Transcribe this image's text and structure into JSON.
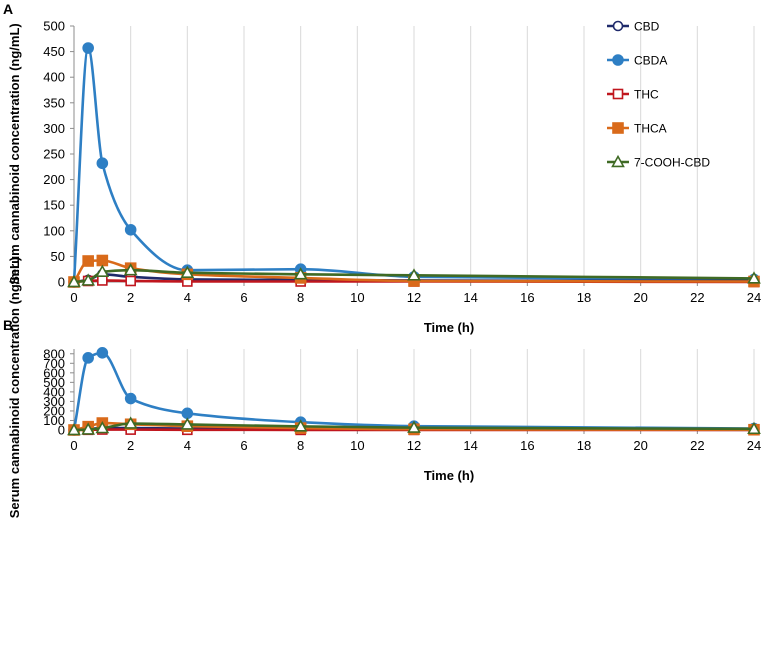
{
  "chart_data": [
    {
      "type": "line",
      "panel_label": "A",
      "xlabel": "Time (h)",
      "ylabel": "Serum cannabinoid concentration (ng/mL)",
      "xlim": [
        0,
        24
      ],
      "ylim": [
        0,
        500
      ],
      "xticks": [
        0,
        2,
        4,
        6,
        8,
        10,
        12,
        14,
        16,
        18,
        20,
        22,
        24
      ],
      "yticks": [
        0,
        50,
        100,
        150,
        200,
        250,
        300,
        350,
        400,
        450,
        500
      ],
      "x": [
        0,
        0.5,
        1,
        2,
        4,
        8,
        12,
        24
      ],
      "series": [
        {
          "name": "CBD",
          "color": "#1f2a6b",
          "marker": "circle-open",
          "values": [
            0,
            4,
            15,
            10,
            5,
            4,
            3,
            2
          ]
        },
        {
          "name": "CBDA",
          "color": "#2e7fc4",
          "marker": "circle-filled",
          "values": [
            0,
            457,
            232,
            102,
            23,
            25,
            10,
            5
          ]
        },
        {
          "name": "THC",
          "color": "#c0161e",
          "marker": "square-open",
          "values": [
            0,
            2,
            3,
            2,
            1,
            1,
            1,
            0
          ]
        },
        {
          "name": "THCA",
          "color": "#d96a1a",
          "marker": "square-filled",
          "values": [
            0,
            41,
            42,
            27,
            15,
            8,
            2,
            1
          ]
        },
        {
          "name": "7-COOH-CBD",
          "color": "#3f6a24",
          "marker": "triangle-open",
          "values": [
            0,
            3,
            20,
            23,
            18,
            15,
            13,
            7
          ]
        }
      ],
      "legend_position": "top-right"
    },
    {
      "type": "line",
      "panel_label": "B",
      "xlabel": "Time (h)",
      "ylabel": "Serum cannabinoid concentration (ng/mL)",
      "xlim": [
        0,
        24
      ],
      "ylim": [
        0,
        850
      ],
      "xticks": [
        0,
        2,
        4,
        6,
        8,
        10,
        12,
        14,
        16,
        18,
        20,
        22,
        24
      ],
      "yticks": [
        0,
        100,
        200,
        300,
        400,
        500,
        600,
        700,
        800
      ],
      "x": [
        0,
        0.5,
        1,
        2,
        4,
        8,
        12,
        24
      ],
      "series": [
        {
          "name": "CBD",
          "color": "#1f2a6b",
          "marker": "circle-open",
          "values": [
            0,
            10,
            20,
            20,
            15,
            8,
            5,
            2
          ]
        },
        {
          "name": "CBDA",
          "color": "#2e7fc4",
          "marker": "circle-filled",
          "values": [
            0,
            757,
            810,
            330,
            175,
            82,
            40,
            15
          ]
        },
        {
          "name": "THC",
          "color": "#c0161e",
          "marker": "square-open",
          "values": [
            0,
            2,
            5,
            4,
            2,
            1,
            1,
            0
          ]
        },
        {
          "name": "THCA",
          "color": "#d96a1a",
          "marker": "square-filled",
          "values": [
            0,
            35,
            73,
            60,
            40,
            20,
            8,
            3
          ]
        },
        {
          "name": "7-COOH-CBD",
          "color": "#3f6a24",
          "marker": "triangle-open",
          "values": [
            0,
            5,
            20,
            68,
            58,
            38,
            25,
            12
          ]
        }
      ]
    }
  ]
}
